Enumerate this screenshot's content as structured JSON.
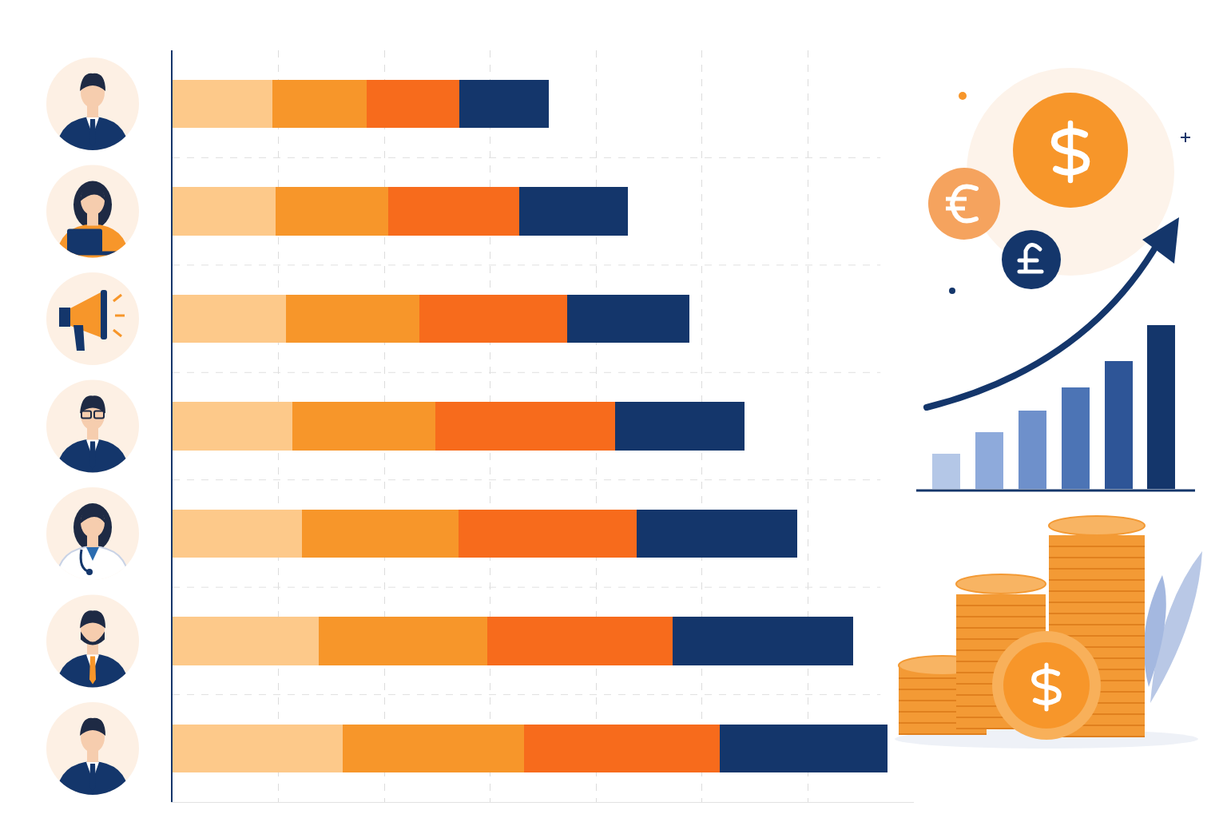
{
  "chart_data": {
    "type": "bar",
    "orientation": "horizontal",
    "stacked": true,
    "categories": [
      null,
      null,
      null,
      null,
      null,
      null,
      null
    ],
    "series": [
      {
        "color": "#FDC98A",
        "values": [
          9.4,
          9.7,
          10.7,
          11.3,
          12.2,
          13.8,
          16.1
        ]
      },
      {
        "color": "#F7962A",
        "values": [
          8.9,
          10.7,
          12.6,
          13.5,
          14.8,
          15.9,
          17.1
        ]
      },
      {
        "color": "#F76B1C",
        "values": [
          8.8,
          12.3,
          14.0,
          17.0,
          16.8,
          17.5,
          18.5
        ]
      },
      {
        "color": "#14366B",
        "values": [
          8.4,
          10.3,
          11.5,
          12.2,
          15.2,
          17.1,
          15.8
        ]
      }
    ],
    "xlim": [
      0,
      70
    ],
    "xticks": [
      0,
      10,
      20,
      30,
      40,
      50,
      60
    ],
    "grid": true,
    "tick_labels": false
  }
}
